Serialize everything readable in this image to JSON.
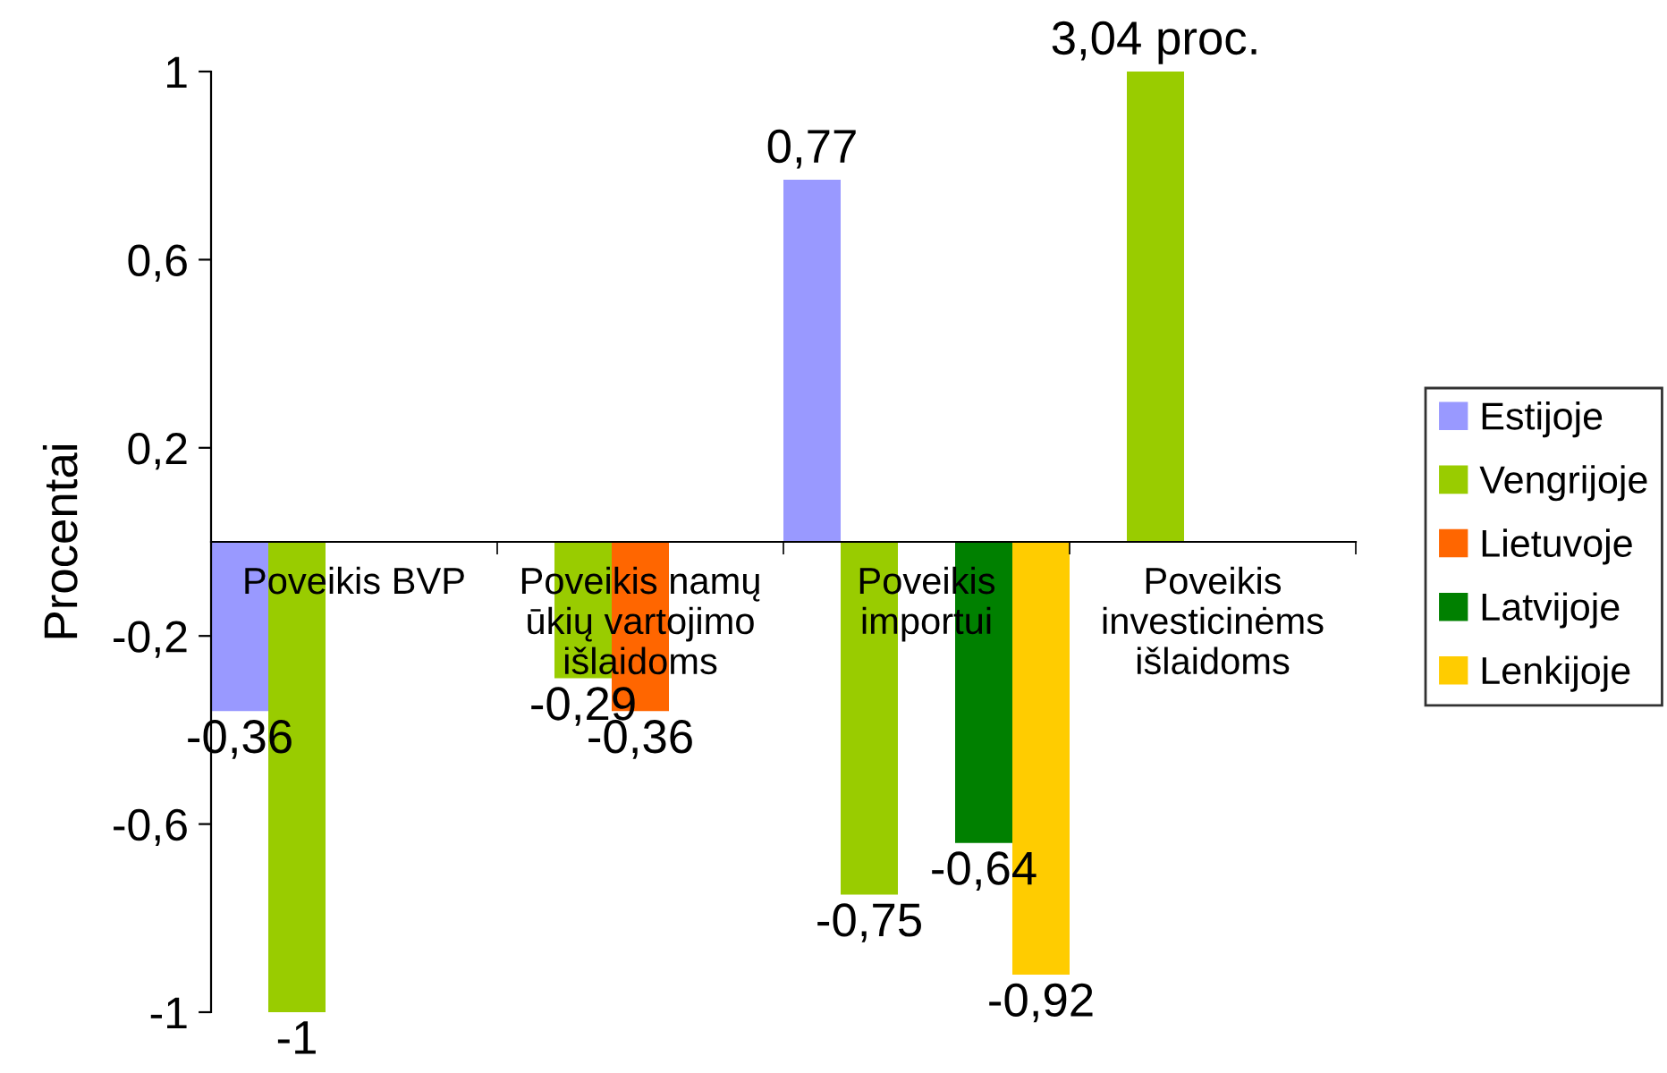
{
  "chart_data": {
    "type": "bar",
    "ylabel": "Procentai",
    "categories": [
      "Poveikis BVP",
      "Poveikis namų ūkių vartojimo išlaidoms",
      "Poveikis importui",
      "Poveikis investicinėms išlaidoms"
    ],
    "series": [
      {
        "name": "Estijoje",
        "color": "#9999ff",
        "values": [
          -0.36,
          null,
          0.77,
          null
        ],
        "value_labels": [
          "-0,36",
          null,
          "0,77",
          null
        ]
      },
      {
        "name": "Vengrijoje",
        "color": "#99cc00",
        "values": [
          -1,
          -0.29,
          -0.75,
          1
        ],
        "value_labels": [
          "-1",
          "-0,29",
          "-0,75",
          null
        ]
      },
      {
        "name": "Lietuvoje",
        "color": "#ff6600",
        "values": [
          null,
          -0.36,
          null,
          null
        ],
        "value_labels": [
          null,
          "-0,36",
          null,
          null
        ]
      },
      {
        "name": "Latvijoje",
        "color": "#008000",
        "values": [
          null,
          null,
          -0.64,
          null
        ],
        "value_labels": [
          null,
          null,
          "-0,64",
          null
        ]
      },
      {
        "name": "Lenkijoje",
        "color": "#ffcc00",
        "values": [
          null,
          null,
          -0.92,
          null
        ],
        "value_labels": [
          null,
          null,
          "-0,92",
          null
        ]
      }
    ],
    "ylim": [
      -1,
      1
    ],
    "yticks": [
      -1,
      {
        "value": -0.6,
        "label": "-0,6"
      },
      {
        "value": -0.2,
        "label": "-0,2"
      },
      {
        "value": 0.2,
        "label": "0,2"
      },
      {
        "value": 0.6,
        "label": "0,6"
      },
      1
    ],
    "grid": false,
    "legend": "right",
    "annotations": [
      "3,04 proc."
    ]
  }
}
